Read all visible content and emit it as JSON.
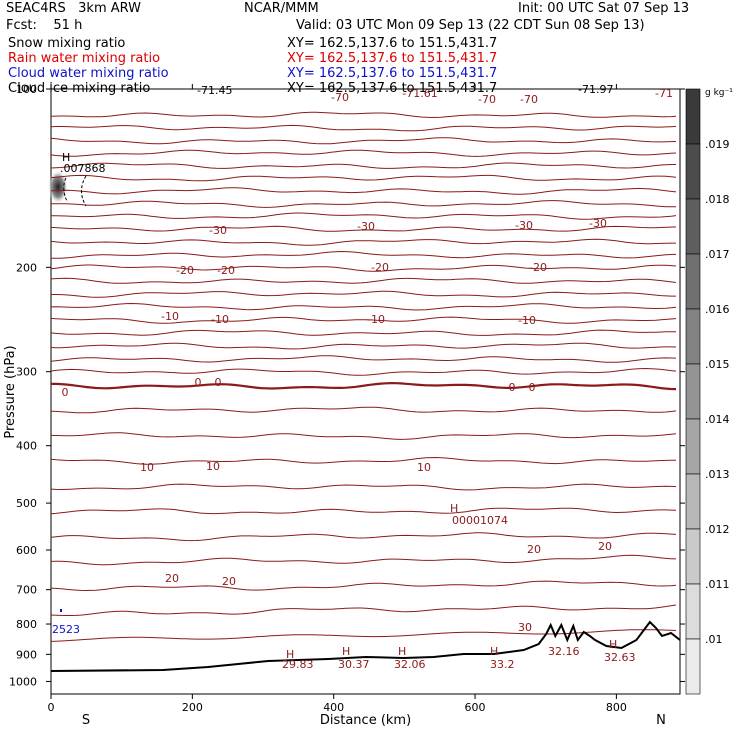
{
  "header": {
    "model": "SEAC4RS   3km ARW",
    "center": "NCAR/MMM",
    "init": "Init: 00 UTC Sat 07 Sep 13",
    "fcst": "Fcst:    51 h",
    "valid": "Valid: 03 UTC Mon 09 Sep 13 (22 CDT Sun 08 Sep 13)",
    "fields": [
      {
        "name": "Snow mixing ratio",
        "xy": "XY= 162.5,137.6 to 151.5,431.7",
        "color": "#000000"
      },
      {
        "name": "Rain water mixing ratio",
        "xy": "XY= 162.5,137.6 to 151.5,431.7",
        "color": "#dd0000"
      },
      {
        "name": "Cloud water mixing ratio",
        "xy": "XY= 162.5,137.6 to 151.5,431.7",
        "color": "#1010cc"
      },
      {
        "name": "Cloud ice mixing ratio",
        "xy": "XY= 162.5,137.6 to 151.5,431.7",
        "color": "#000000"
      }
    ]
  },
  "chart_data": {
    "type": "contour",
    "xlabel": "Distance (km)",
    "ylabel": "Pressure (hPa)",
    "xlim": [
      0,
      890
    ],
    "ylim": [
      1050,
      100
    ],
    "y_scale": "log",
    "x_ticks": [
      "0",
      "200",
      "400",
      "600",
      "800"
    ],
    "y_ticks": [
      "100",
      "200",
      "300",
      "400",
      "500",
      "600",
      "700",
      "800",
      "900",
      "1000"
    ],
    "x_endpoints": [
      "S",
      "N"
    ],
    "isotherm_color": "#8b1a1a",
    "isotherms": [
      {
        "value": -70,
        "labels": [
          "-70",
          "-70",
          "-70",
          "-71.61"
        ]
      },
      {
        "value": -30,
        "labels": [
          "-30",
          "-30",
          "-30",
          "-30"
        ]
      },
      {
        "value": -20,
        "labels": [
          "-20",
          "-20",
          "-20",
          "-20"
        ]
      },
      {
        "value": -10,
        "labels": [
          "-10",
          "-10",
          "-10",
          "-10"
        ]
      },
      {
        "value": 0,
        "labels": [
          "0",
          "0",
          "0",
          "0",
          "0"
        ]
      },
      {
        "value": 10,
        "labels": [
          "10",
          "10",
          "10"
        ]
      },
      {
        "value": 20,
        "labels": [
          "20",
          "20",
          "20",
          "20"
        ]
      },
      {
        "value": 30,
        "labels": [
          "30"
        ]
      }
    ],
    "extrema_labels": [
      "H",
      ".007868",
      "H",
      "00001074",
      "2523",
      "H",
      "29.83",
      "H",
      "30.37",
      "H",
      "32.06",
      "H",
      "33.2",
      "32.16",
      "H",
      "32.63",
      "-71.45",
      "-71.97",
      "-71"
    ],
    "colorbar": {
      "unit": "g kg⁻¹",
      "labels": [
        ".019",
        ".018",
        ".017",
        ".016",
        ".015",
        ".014",
        ".013",
        ".012",
        ".011",
        ".01"
      ]
    }
  }
}
